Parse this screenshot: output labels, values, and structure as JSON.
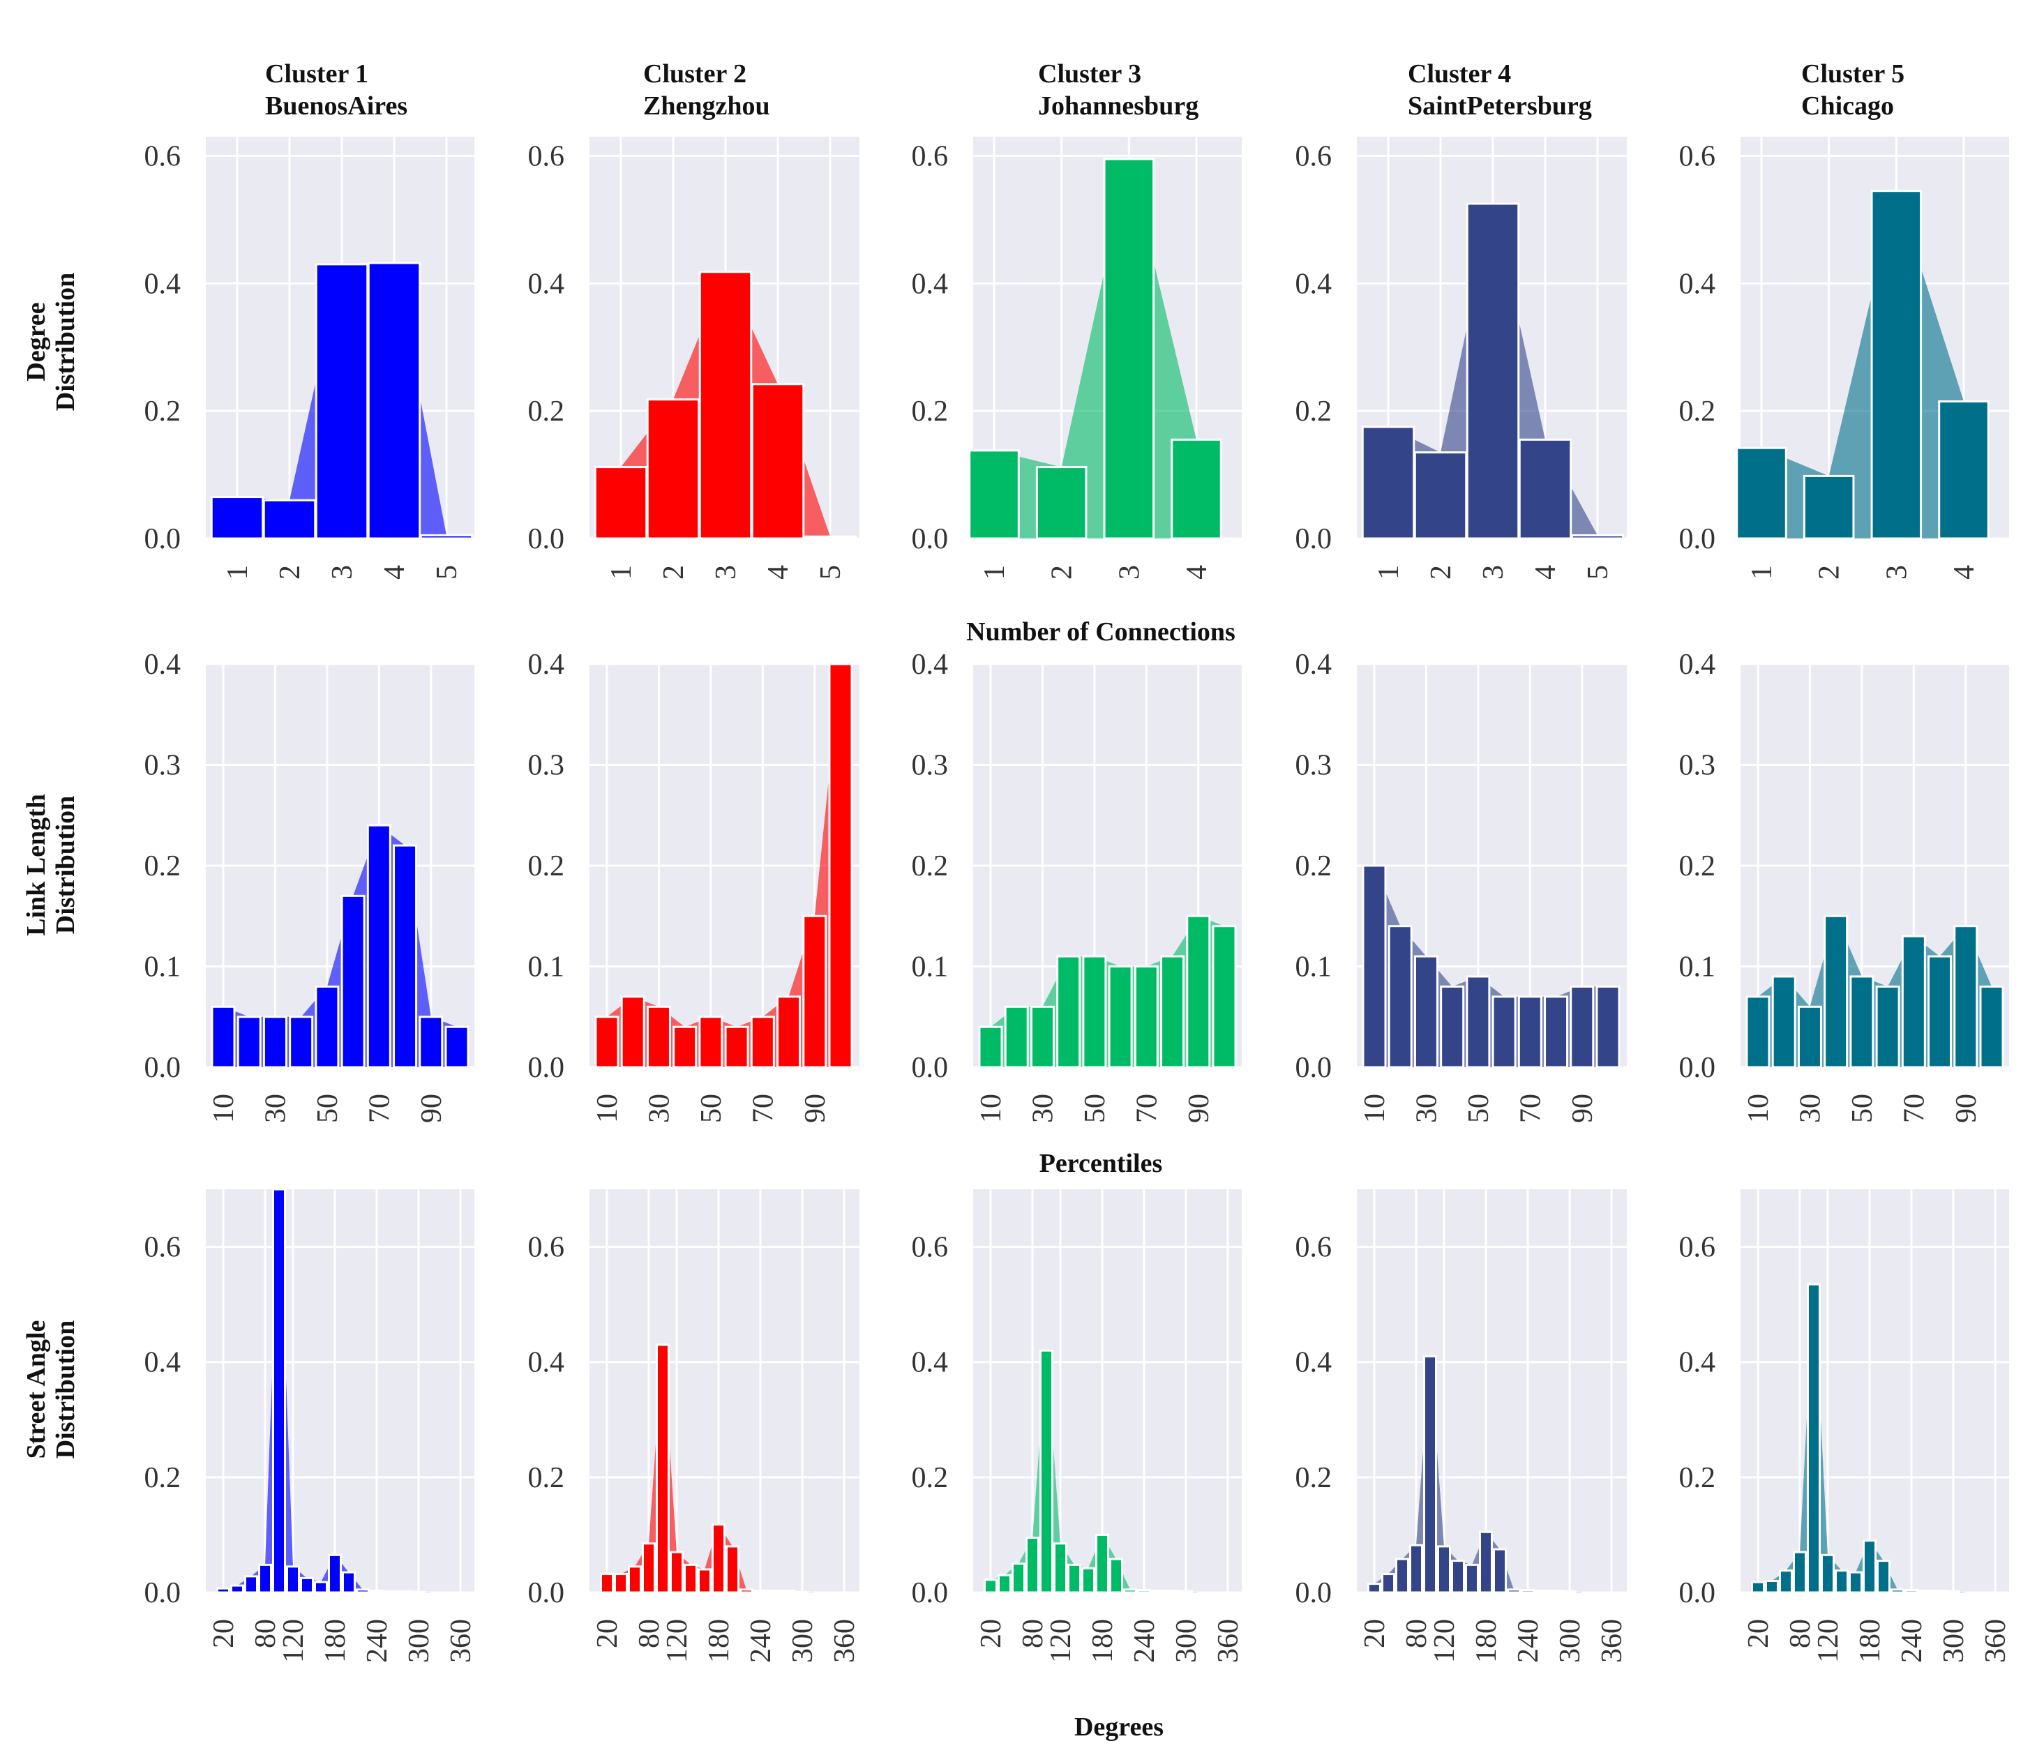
{
  "clusters": [
    {
      "title": "Cluster 1",
      "city": "BuenosAires",
      "color": "#0000ff"
    },
    {
      "title": "Cluster 2",
      "city": "Zhengzhou",
      "color": "#ff0000"
    },
    {
      "title": "Cluster 3",
      "city": "Johannesburg",
      "color": "#00bb66"
    },
    {
      "title": "Cluster 4",
      "city": "SaintPetersburg",
      "color": "#334488"
    },
    {
      "title": "Cluster 5",
      "city": "Chicago",
      "color": "#00708a"
    }
  ],
  "rows": [
    {
      "label_line1": "Degree",
      "label_line2": "Distribution",
      "xlabel": "Number of Connections"
    },
    {
      "label_line1": "Link Length",
      "label_line2": "Distribution",
      "xlabel": "Percentiles"
    },
    {
      "label_line1": "Street Angle",
      "label_line2": "Distribution",
      "xlabel": "Degrees"
    }
  ],
  "chart_data": [
    {
      "type": "bar",
      "row": "Degree Distribution",
      "xlabel": "Number of Connections",
      "ylim": [
        0,
        0.63
      ],
      "yticks": [
        0.0,
        0.2,
        0.4,
        0.6
      ],
      "ytick_labels": [
        "0.0",
        "0.2",
        "0.4",
        "0.6"
      ],
      "series": [
        {
          "name": "BuenosAires",
          "categories": [
            "1",
            "2",
            "3",
            "4",
            "5"
          ],
          "values": [
            0.065,
            0.06,
            0.43,
            0.432,
            0.005
          ]
        },
        {
          "name": "Zhengzhou",
          "categories": [
            "1",
            "2",
            "3",
            "4",
            "5"
          ],
          "values": [
            0.112,
            0.218,
            0.418,
            0.242,
            0.003
          ]
        },
        {
          "name": "Johannesburg",
          "categories": [
            "1",
            "2",
            "3",
            "4"
          ],
          "values": [
            0.138,
            0.112,
            0.595,
            0.155
          ]
        },
        {
          "name": "SaintPetersburg",
          "categories": [
            "1",
            "2",
            "3",
            "4",
            "5"
          ],
          "values": [
            0.175,
            0.135,
            0.525,
            0.155,
            0.005
          ]
        },
        {
          "name": "Chicago",
          "categories": [
            "1",
            "2",
            "3",
            "4"
          ],
          "values": [
            0.142,
            0.098,
            0.545,
            0.215
          ]
        }
      ]
    },
    {
      "type": "bar",
      "row": "Link Length Distribution",
      "xlabel": "Percentiles",
      "ylim": [
        0,
        0.4
      ],
      "yticks": [
        0.0,
        0.1,
        0.2,
        0.3,
        0.4
      ],
      "ytick_labels": [
        "0.0",
        "0.1",
        "0.2",
        "0.3",
        "0.4"
      ],
      "x": [
        10,
        20,
        30,
        40,
        50,
        60,
        70,
        80,
        90,
        100
      ],
      "xticks": [
        "10",
        "30",
        "50",
        "70",
        "90"
      ],
      "series": [
        {
          "name": "BuenosAires",
          "values": [
            0.06,
            0.05,
            0.05,
            0.05,
            0.08,
            0.17,
            0.24,
            0.22,
            0.05,
            0.04
          ]
        },
        {
          "name": "Zhengzhou",
          "values": [
            0.05,
            0.07,
            0.06,
            0.04,
            0.05,
            0.04,
            0.05,
            0.07,
            0.15,
            0.4
          ]
        },
        {
          "name": "Johannesburg",
          "values": [
            0.04,
            0.06,
            0.06,
            0.11,
            0.11,
            0.1,
            0.1,
            0.11,
            0.15,
            0.14
          ]
        },
        {
          "name": "SaintPetersburg",
          "values": [
            0.2,
            0.14,
            0.11,
            0.08,
            0.09,
            0.07,
            0.07,
            0.07,
            0.08,
            0.08
          ]
        },
        {
          "name": "Chicago",
          "values": [
            0.07,
            0.09,
            0.06,
            0.15,
            0.09,
            0.08,
            0.13,
            0.11,
            0.14,
            0.08
          ]
        }
      ]
    },
    {
      "type": "bar",
      "row": "Street Angle Distribution",
      "xlabel": "Degrees",
      "ylim": [
        0,
        0.7
      ],
      "yticks": [
        0.0,
        0.2,
        0.4,
        0.6
      ],
      "ytick_labels": [
        "0.0",
        "0.2",
        "0.4",
        "0.6"
      ],
      "x": [
        20,
        40,
        60,
        80,
        100,
        120,
        140,
        160,
        180,
        200,
        220,
        240,
        260,
        280,
        300,
        320,
        340,
        360
      ],
      "xticks": [
        "20",
        "80",
        "120",
        "180",
        "240",
        "300",
        "360"
      ],
      "series": [
        {
          "name": "BuenosAires",
          "values": [
            0.007,
            0.012,
            0.028,
            0.048,
            0.7,
            0.045,
            0.025,
            0.018,
            0.065,
            0.035,
            0.005,
            0.003,
            0.002,
            0.002,
            0.001,
            0.0,
            0.0,
            0.0
          ]
        },
        {
          "name": "Zhengzhou",
          "values": [
            0.032,
            0.032,
            0.045,
            0.085,
            0.43,
            0.07,
            0.048,
            0.04,
            0.118,
            0.08,
            0.005,
            0.003,
            0.003,
            0.003,
            0.001,
            0.0,
            0.0,
            0.0
          ]
        },
        {
          "name": "Johannesburg",
          "values": [
            0.022,
            0.03,
            0.05,
            0.095,
            0.42,
            0.085,
            0.048,
            0.042,
            0.1,
            0.058,
            0.005,
            0.004,
            0.003,
            0.003,
            0.002,
            0.0,
            0.0,
            0.0
          ]
        },
        {
          "name": "SaintPetersburg",
          "values": [
            0.015,
            0.032,
            0.058,
            0.082,
            0.41,
            0.08,
            0.055,
            0.048,
            0.105,
            0.075,
            0.005,
            0.004,
            0.003,
            0.003,
            0.002,
            0.0,
            0.0,
            0.0
          ]
        },
        {
          "name": "Chicago",
          "values": [
            0.018,
            0.02,
            0.038,
            0.07,
            0.535,
            0.065,
            0.038,
            0.035,
            0.09,
            0.055,
            0.005,
            0.004,
            0.003,
            0.003,
            0.002,
            0.0,
            0.0,
            0.0
          ]
        }
      ]
    }
  ]
}
